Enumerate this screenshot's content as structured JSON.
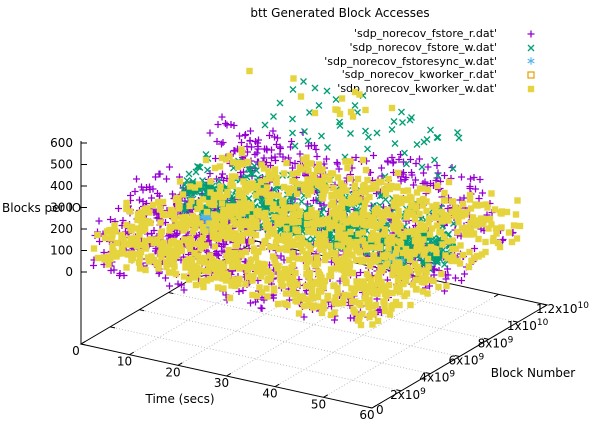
{
  "title": "btt Generated Block Accesses",
  "colors": {
    "background": "#ffffff",
    "axis": "#000000",
    "grid": "#c0c0c0",
    "text": "#000000"
  },
  "chart_data": {
    "type": "scatter",
    "projection": "3d",
    "grid": true,
    "legend_position": "top-right",
    "axes": {
      "x": {
        "label": "Time (secs)",
        "min": 0,
        "max": 60,
        "ticks": [
          {
            "v": 0,
            "label": "0"
          },
          {
            "v": 10,
            "label": "10"
          },
          {
            "v": 20,
            "label": "20"
          },
          {
            "v": 30,
            "label": "30"
          },
          {
            "v": 40,
            "label": "40"
          },
          {
            "v": 50,
            "label": "50"
          },
          {
            "v": 60,
            "label": "60"
          }
        ]
      },
      "y": {
        "label": "Block Number",
        "min": 0,
        "max": 12000000000,
        "ticks": [
          {
            "v": 0,
            "label": "0"
          },
          {
            "v": 2000000000,
            "label": "2x10^9"
          },
          {
            "v": 4000000000,
            "label": "4x10^9"
          },
          {
            "v": 6000000000,
            "label": "6x10^9"
          },
          {
            "v": 8000000000,
            "label": "8x10^9"
          },
          {
            "v": 10000000000,
            "label": "1x10^10"
          },
          {
            "v": 12000000000,
            "label": "1.2x10^10"
          }
        ]
      },
      "z": {
        "label": "Blocks per IO",
        "min": 0,
        "max": 600,
        "ticks": [
          {
            "v": 0,
            "label": "0"
          },
          {
            "v": 100,
            "label": "100"
          },
          {
            "v": 200,
            "label": "200"
          },
          {
            "v": 300,
            "label": "300"
          },
          {
            "v": 400,
            "label": "400"
          },
          {
            "v": 500,
            "label": "500"
          },
          {
            "v": 600,
            "label": "600"
          }
        ]
      }
    },
    "series": [
      {
        "name": "'sdp_norecov_fstore_r.dat'",
        "marker": "plus",
        "color": "#9400d3",
        "clusters": [
          {
            "t": [
              1,
              26
            ],
            "b_e9": [
              2.0,
              3.6
            ],
            "z": [
              0,
              310
            ],
            "n": 300
          },
          {
            "t": [
              2,
              57
            ],
            "b_e9": [
              8.0,
              9.3
            ],
            "z": [
              100,
              380
            ],
            "n": 280
          },
          {
            "t": [
              0,
              60
            ],
            "b_e9": [
              4.0,
              5.6
            ],
            "z": [
              0,
              320
            ],
            "n": 300
          },
          {
            "t": [
              0,
              60
            ],
            "b_e9": [
              0.0,
              1.6
            ],
            "z": [
              0,
              220
            ],
            "n": 220
          },
          {
            "t": [
              40,
              60
            ],
            "b_e9": [
              5.6,
              7.6
            ],
            "z": [
              0,
              140
            ],
            "n": 80
          },
          {
            "t": [
              55,
              60
            ],
            "b_e9": [
              9.8,
              10.6
            ],
            "z": [
              0,
              80
            ],
            "n": 6
          }
        ]
      },
      {
        "name": "'sdp_norecov_fstore_w.dat'",
        "marker": "cross",
        "color": "#009e73",
        "clusters": [
          {
            "t": [
              3,
              58
            ],
            "b_e9": [
              5.5,
              6.5
            ],
            "z": [
              60,
              200
            ],
            "n": 600
          },
          {
            "t": [
              5,
              58
            ],
            "b_e9": [
              5.5,
              6.6
            ],
            "z": [
              200,
              330
            ],
            "n": 130
          },
          {
            "t": [
              8,
              50
            ],
            "b_e9": [
              8.6,
              11.6
            ],
            "z": [
              250,
              560
            ],
            "n": 50
          },
          {
            "t": [
              43,
              48
            ],
            "b_e9": [
              6.0,
              6.6
            ],
            "z": [
              0,
              60
            ],
            "n": 50
          }
        ]
      },
      {
        "name": "'sdp_norecov_fstoresync_w.dat'",
        "marker": "star",
        "color": "#56b4e9",
        "clusters": [
          {
            "t": [
              6.5,
              9.5
            ],
            "b_e9": [
              5.7,
              6.1
            ],
            "z": [
              0,
              70
            ],
            "n": 26
          },
          {
            "t": [
              44,
              47
            ],
            "b_e9": [
              6.2,
              6.6
            ],
            "z": [
              0,
              50
            ],
            "n": 12
          }
        ]
      },
      {
        "name": "'sdp_norecov_kworker_r.dat'",
        "marker": "square-open",
        "color": "#e69f00",
        "clusters": [
          {
            "t": [
              46,
              50
            ],
            "b_e9": [
              3.9,
              4.3
            ],
            "z": [
              10,
              50
            ],
            "n": 3
          }
        ]
      },
      {
        "name": "'sdp_norecov_kworker_w.dat'",
        "marker": "square-filled",
        "color": "#e6d43f",
        "clusters": [
          {
            "t": [
              0,
              60
            ],
            "b_e9": [
              0.4,
              2.0
            ],
            "z": [
              0,
              160
            ],
            "n": 330
          },
          {
            "t": [
              0,
              60
            ],
            "b_e9": [
              2.6,
              4.2
            ],
            "z": [
              0,
              210
            ],
            "n": 330
          },
          {
            "t": [
              0,
              60
            ],
            "b_e9": [
              4.9,
              6.6
            ],
            "z": [
              0,
              210
            ],
            "n": 300
          },
          {
            "t": [
              2,
              60
            ],
            "b_e9": [
              7.4,
              9.1
            ],
            "z": [
              0,
              260
            ],
            "n": 300
          },
          {
            "t": [
              15,
              60
            ],
            "b_e9": [
              9.4,
              11.0
            ],
            "z": [
              0,
              220
            ],
            "n": 150
          },
          {
            "t": [
              2,
              30
            ],
            "b_e9": [
              10.8,
              11.7
            ],
            "z": [
              350,
              520
            ],
            "n": 14
          }
        ]
      }
    ]
  }
}
